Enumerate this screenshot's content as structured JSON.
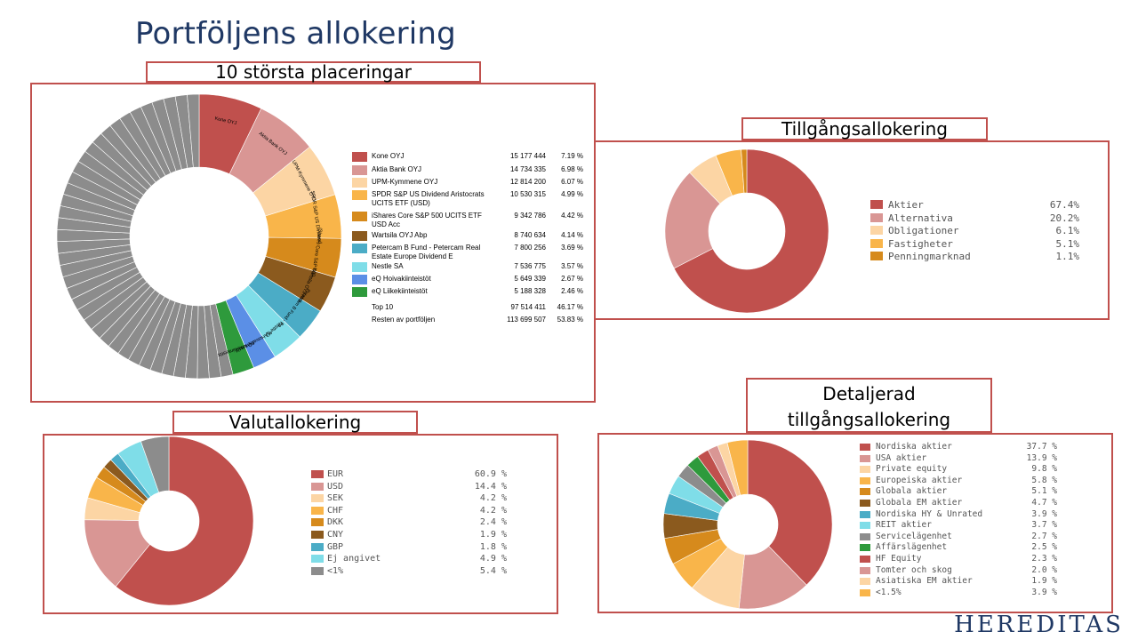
{
  "page_title": "Portföljens allokering",
  "brand": "HEREDITAS",
  "chart_data": [
    {
      "id": "top10",
      "type": "pie",
      "title": "10 största placeringar",
      "slices": [
        {
          "name": "Kone OYJ",
          "short": "Kone OYJ",
          "amount": "15 177 444",
          "pct_label": "7.19 %",
          "value": 7.19,
          "color": "#c0504d"
        },
        {
          "name": "Aktia Bank OYJ",
          "short": "Aktia Bank OYJ",
          "amount": "14 734 335",
          "pct_label": "6.98 %",
          "value": 6.98,
          "color": "#d99694"
        },
        {
          "name": "UPM-Kymmene OYJ",
          "short": "UPM-Kymmene OYJ",
          "amount": "12 814 200",
          "pct_label": "6.07 %",
          "value": 6.07,
          "color": "#fcd5a4"
        },
        {
          "name": "SPDR S&P US Dividend Aristocrats UCITS ETF (USD)",
          "short": "SPDR S&P US Dividend Aristocrats UCITS ETF (USD)",
          "amount": "10 530 315",
          "pct_label": "4.99 %",
          "value": 4.99,
          "color": "#f9b54a"
        },
        {
          "name": "iShares Core S&P 500 UCITS ETF USD Acc",
          "short": "iShares Core S&P 500 UCITS ETF USD Acc",
          "amount": "9 342 786",
          "pct_label": "4.42 %",
          "value": 4.42,
          "color": "#d68a1c"
        },
        {
          "name": "Wartsila OYJ Abp",
          "short": "Wartsila OYJ Abp",
          "amount": "8 740 634",
          "pct_label": "4.14 %",
          "value": 4.14,
          "color": "#8b5a1e"
        },
        {
          "name": "Petercam B Fund - Petercam Real Estate Europe Dividend E",
          "short": "Petercam B Fund - Petercam Real Estate Europe Dividend E",
          "amount": "7 800 256",
          "pct_label": "3.69 %",
          "value": 3.69,
          "color": "#4bacc6"
        },
        {
          "name": "Nestle SA",
          "short": "Nestle SA",
          "amount": "7 536 775",
          "pct_label": "3.57 %",
          "value": 3.57,
          "color": "#7fdde8"
        },
        {
          "name": "eQ Hoivakiinteistöt",
          "short": "eQ Hoivakiinteistöt",
          "amount": "5 649 339",
          "pct_label": "2.67 %",
          "value": 2.67,
          "color": "#5b8fe6"
        },
        {
          "name": "eQ Liikekiinteistöt",
          "short": "eQ Liikekiinteistöt",
          "amount": "5 188 328",
          "pct_label": "2.46 %",
          "value": 2.46,
          "color": "#2e9a3c"
        }
      ],
      "rest_value": 53.83,
      "rest_color": "#8c8c8c",
      "summary": [
        {
          "name": "Top 10",
          "amount": "97 514 411",
          "pct_label": "46.17 %"
        },
        {
          "name": "Resten av portföljen",
          "amount": "113 699 507",
          "pct_label": "53.83 %"
        }
      ]
    },
    {
      "id": "tillgang",
      "type": "pie",
      "title": "Tillgångsallokering",
      "slices": [
        {
          "name": "Aktier",
          "pct_label": "67.4%",
          "value": 67.4,
          "color": "#c0504d"
        },
        {
          "name": "Alternativa",
          "pct_label": "20.2%",
          "value": 20.2,
          "color": "#d99694"
        },
        {
          "name": "Obligationer",
          "pct_label": "6.1%",
          "value": 6.1,
          "color": "#fcd5a4"
        },
        {
          "name": "Fastigheter",
          "pct_label": "5.1%",
          "value": 5.1,
          "color": "#f9b54a"
        },
        {
          "name": "Penningmarknad",
          "pct_label": "1.1%",
          "value": 1.1,
          "color": "#d68a1c"
        }
      ]
    },
    {
      "id": "valuta",
      "type": "pie",
      "title": "Valutallokering",
      "slices": [
        {
          "name": "EUR",
          "pct_label": "60.9 %",
          "value": 60.9,
          "color": "#c0504d"
        },
        {
          "name": "USD",
          "pct_label": "14.4 %",
          "value": 14.4,
          "color": "#d99694"
        },
        {
          "name": "SEK",
          "pct_label": "4.2 %",
          "value": 4.2,
          "color": "#fcd5a4"
        },
        {
          "name": "CHF",
          "pct_label": "4.2 %",
          "value": 4.2,
          "color": "#f9b54a"
        },
        {
          "name": "DKK",
          "pct_label": "2.4 %",
          "value": 2.4,
          "color": "#d68a1c"
        },
        {
          "name": "CNY",
          "pct_label": "1.9 %",
          "value": 1.9,
          "color": "#8b5a1e"
        },
        {
          "name": "GBP",
          "pct_label": "1.8 %",
          "value": 1.8,
          "color": "#4bacc6"
        },
        {
          "name": "Ej angivet",
          "pct_label": "4.9 %",
          "value": 4.9,
          "color": "#7fdde8"
        },
        {
          "name": "<1%",
          "pct_label": "5.4 %",
          "value": 5.4,
          "color": "#8c8c8c"
        }
      ]
    },
    {
      "id": "detalj",
      "type": "pie",
      "title": "Detaljerad tillgångsallokering",
      "title_lines": [
        "Detaljerad",
        "tillgångsallokering"
      ],
      "slices": [
        {
          "name": "Nordiska aktier",
          "pct_label": "37.7 %",
          "value": 37.7,
          "color": "#c0504d"
        },
        {
          "name": "USA aktier",
          "pct_label": "13.9 %",
          "value": 13.9,
          "color": "#d99694"
        },
        {
          "name": "Private equity",
          "pct_label": "9.8 %",
          "value": 9.8,
          "color": "#fcd5a4"
        },
        {
          "name": "Europeiska aktier",
          "pct_label": "5.8 %",
          "value": 5.8,
          "color": "#f9b54a"
        },
        {
          "name": "Globala aktier",
          "pct_label": "5.1 %",
          "value": 5.1,
          "color": "#d68a1c"
        },
        {
          "name": "Globala EM aktier",
          "pct_label": "4.7 %",
          "value": 4.7,
          "color": "#8b5a1e"
        },
        {
          "name": "Nordiska HY & Unrated",
          "pct_label": "3.9 %",
          "value": 3.9,
          "color": "#4bacc6"
        },
        {
          "name": "REIT aktier",
          "pct_label": "3.7 %",
          "value": 3.7,
          "color": "#7fdde8"
        },
        {
          "name": "Servicelägenhet",
          "pct_label": "2.7 %",
          "value": 2.7,
          "color": "#8c8c8c"
        },
        {
          "name": "Affärslägenhet",
          "pct_label": "2.5 %",
          "value": 2.5,
          "color": "#2e9a3c"
        },
        {
          "name": "HF Equity",
          "pct_label": "2.3 %",
          "value": 2.3,
          "color": "#c0504d"
        },
        {
          "name": "Tomter och skog",
          "pct_label": "2.0 %",
          "value": 2.0,
          "color": "#d99694"
        },
        {
          "name": "Asiatiska EM aktier",
          "pct_label": "1.9 %",
          "value": 1.9,
          "color": "#fcd5a4"
        },
        {
          "name": "<1.5%",
          "pct_label": "3.9 %",
          "value": 3.9,
          "color": "#f9b54a"
        }
      ]
    }
  ]
}
